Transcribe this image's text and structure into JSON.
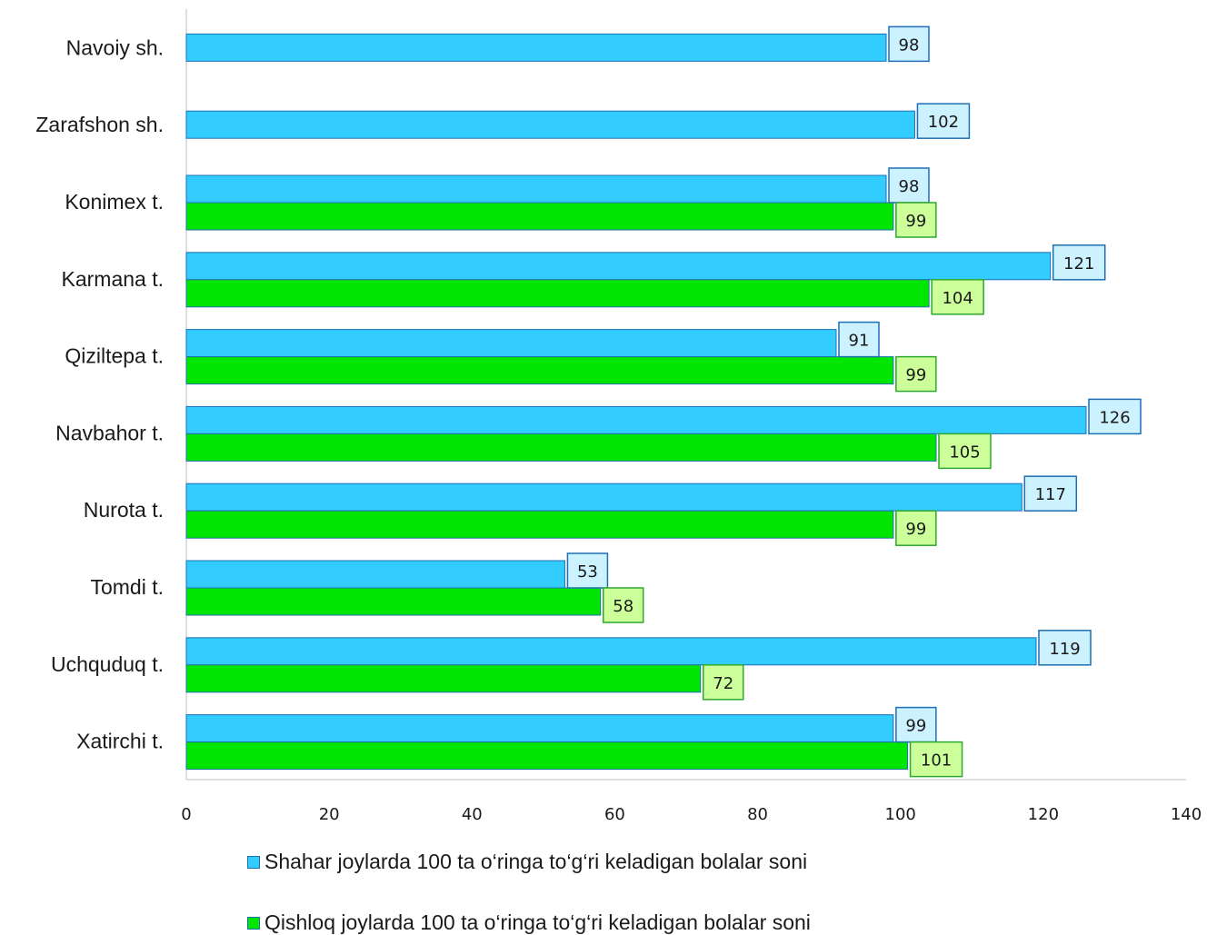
{
  "chart_data": {
    "type": "bar",
    "orientation": "horizontal",
    "categories": [
      "Navoiy sh.",
      "Zarafshon sh.",
      "Konimex t.",
      "Karmana t.",
      "Qiziltepa t.",
      "Navbahor t.",
      "Nurota t.",
      "Tomdi t.",
      "Uchquduq t.",
      "Xatirchi t."
    ],
    "series": [
      {
        "name": "Shahar joylarda 100 ta o‘ringa to‘g‘ri keladigan bolalar soni",
        "color": "#33CCFF",
        "label_fill": "#CCF2FF",
        "values": [
          98,
          102,
          98,
          121,
          91,
          126,
          117,
          53,
          119,
          99
        ]
      },
      {
        "name": "Qishloq joylarda 100 ta o‘ringa to‘g‘ri keladigan bolalar soni",
        "color": "#00E600",
        "label_fill": "#CCFF99",
        "values": [
          null,
          null,
          99,
          104,
          99,
          105,
          99,
          58,
          72,
          101
        ]
      }
    ],
    "xlim": [
      0,
      140
    ],
    "x_ticks": [
      "0",
      "20",
      "40",
      "60",
      "80",
      "100",
      "120",
      "140"
    ],
    "grid": false,
    "legend_position": "bottom",
    "data_labels": true
  }
}
